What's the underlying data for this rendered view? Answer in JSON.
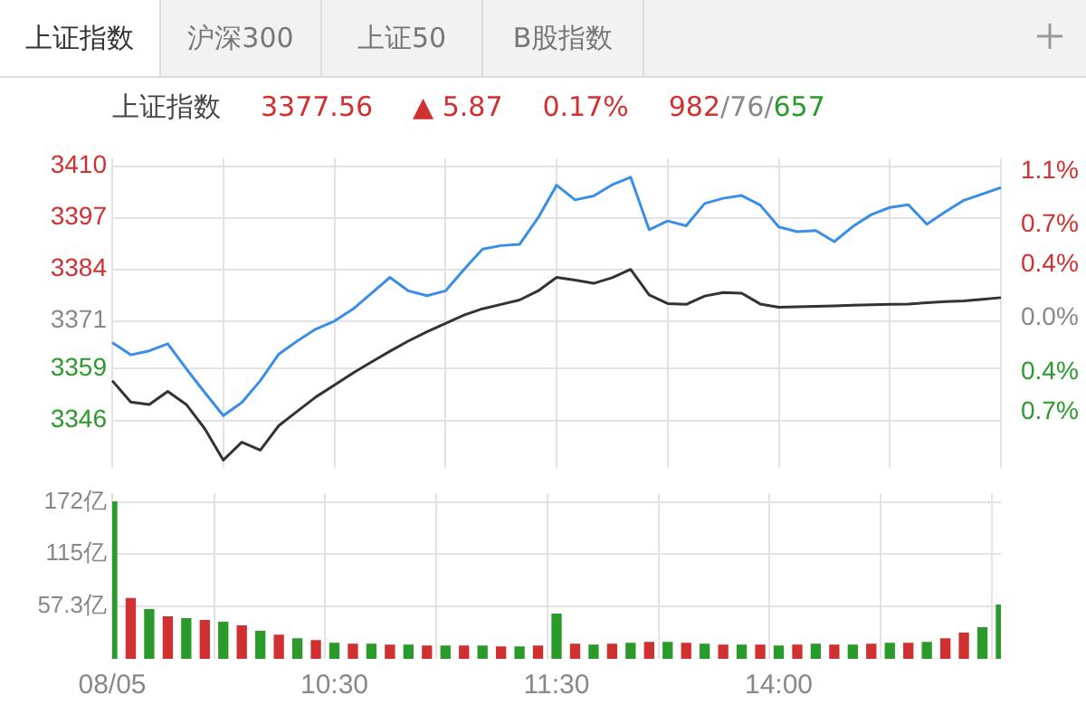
{
  "chart_data": [
    {
      "type": "other",
      "annotations": [
        "上证指数",
        "沪深300",
        "上证50",
        "B股指数"
      ]
    },
    {
      "type": "line",
      "title": "上证指数",
      "annotations": [
        "3377.56",
        "▲ 5.87",
        "0.17%",
        "982/76/657"
      ],
      "categories": [
        null,
        null,
        null,
        null,
        null,
        null,
        null,
        null,
        null,
        null,
        null,
        null,
        null,
        null,
        null,
        null,
        null,
        null,
        null,
        null,
        null,
        null,
        null,
        null,
        null,
        null,
        null,
        null,
        null,
        null,
        null,
        null,
        null,
        null,
        null,
        null,
        null,
        null,
        null,
        null,
        null,
        null,
        null,
        null,
        null,
        null,
        null,
        null,
        null
      ],
      "ylim": [
        3334,
        3412
      ],
      "yticks": [
        3410,
        3397,
        3384,
        3371,
        3359,
        3346
      ],
      "y2lim": [
        -1.118,
        1.196
      ],
      "y2ticks": [
        {
          "value": 1.1,
          "label": "1.1%"
        },
        {
          "value": 0.7,
          "label": "0.7%"
        },
        {
          "value": 0.4,
          "label": "0.4%"
        },
        {
          "value": 0,
          "label": "0.0%"
        },
        {
          "value": -0.4,
          "label": "0.4%"
        },
        {
          "value": -0.7,
          "label": "0.7%"
        }
      ],
      "grid": true,
      "tick_labels": "y",
      "marker": "none",
      "line_style": "solid",
      "series": [
        {
          "color": "#3a8ee6",
          "values": [
            3365.6,
            3362.5,
            3363.5,
            3365.3,
            3359,
            3353,
            3347.2,
            3350.5,
            3356,
            3362.7,
            3366,
            3369,
            3371,
            3374,
            3378,
            3382,
            3378.6,
            3377.4,
            3378.6,
            3384,
            3389.1,
            3390,
            3390.3,
            3397,
            3405.2,
            3401.5,
            3402.5,
            3405.3,
            3407.2,
            3394,
            3396.2,
            3395,
            3400.6,
            3401.9,
            3402.6,
            3400.2,
            3394.7,
            3393.5,
            3393.8,
            3391,
            3394.8,
            3397.8,
            3399.6,
            3400.3,
            3395.4,
            3398.5,
            3401.4,
            3403,
            3404.6
          ]
        },
        {
          "color": "#333333",
          "values": [
            3356,
            3350.6,
            3350,
            3353.3,
            3350,
            3343.9,
            3336,
            3340.5,
            3338.5,
            3344.7,
            3348.3,
            3351.9,
            3354.9,
            3357.9,
            3360.7,
            3363.4,
            3366,
            3368.3,
            3370.4,
            3372.5,
            3374.1,
            3375.2,
            3376.3,
            3378.6,
            3382,
            3381.3,
            3380.5,
            3381.9,
            3384,
            3377.6,
            3375.4,
            3375.2,
            3377.3,
            3378.2,
            3378,
            3375.3,
            3374.5,
            3374.6,
            3374.7,
            3374.8,
            3375,
            3375.1,
            3375.2,
            3375.3,
            3375.6,
            3375.9,
            3376.1,
            3376.5,
            3376.9
          ]
        }
      ]
    },
    {
      "type": "bar",
      "categories": [
        "08/05",
        null,
        null,
        null,
        null,
        null,
        null,
        null,
        null,
        null,
        null,
        null,
        "10:30",
        null,
        null,
        null,
        null,
        null,
        null,
        null,
        null,
        null,
        null,
        null,
        "11:30",
        null,
        null,
        null,
        null,
        null,
        null,
        null,
        null,
        null,
        null,
        null,
        "14:00",
        null,
        null,
        null,
        null,
        null,
        null,
        null,
        null,
        null,
        null,
        null,
        null
      ],
      "ylim": [
        0,
        181
      ],
      "yticks": [
        {
          "value": 57.3,
          "label": "57.3亿"
        },
        {
          "value": 115,
          "label": "115亿"
        },
        {
          "value": 172,
          "label": "172亿"
        }
      ],
      "grid": true,
      "values": [
        172,
        66,
        54,
        46,
        44,
        42,
        40,
        36,
        30,
        26,
        22,
        20,
        17,
        16,
        16,
        15,
        15,
        14,
        14,
        14,
        14,
        13,
        13,
        14,
        49,
        16,
        15,
        16,
        17,
        18,
        18,
        17,
        16,
        15,
        15,
        15,
        14,
        15,
        16,
        15,
        15,
        16,
        17,
        17,
        18,
        22,
        28,
        34,
        59
      ],
      "colors": [
        "#2a9a2a",
        "#d03030",
        "#2a9a2a",
        "#d03030",
        "#2a9a2a",
        "#d03030",
        "#2a9a2a",
        "#d03030",
        "#2a9a2a",
        "#d03030",
        "#2a9a2a",
        "#d03030",
        "#2a9a2a",
        "#d03030",
        "#2a9a2a",
        "#d03030",
        "#2a9a2a",
        "#d03030",
        "#2a9a2a",
        "#d03030",
        "#2a9a2a",
        "#d03030",
        "#2a9a2a",
        "#d03030",
        "#2a9a2a",
        "#d03030",
        "#2a9a2a",
        "#d03030",
        "#2a9a2a",
        "#d03030",
        "#2a9a2a",
        "#d03030",
        "#2a9a2a",
        "#d03030",
        "#2a9a2a",
        "#d03030",
        "#2a9a2a",
        "#d03030",
        "#2a9a2a",
        "#d03030",
        "#2a9a2a",
        "#d03030",
        "#2a9a2a",
        "#d03030",
        "#2a9a2a",
        "#d03030",
        "#d03030",
        "#2a9a2a",
        "#2a9a2a"
      ]
    }
  ]
}
